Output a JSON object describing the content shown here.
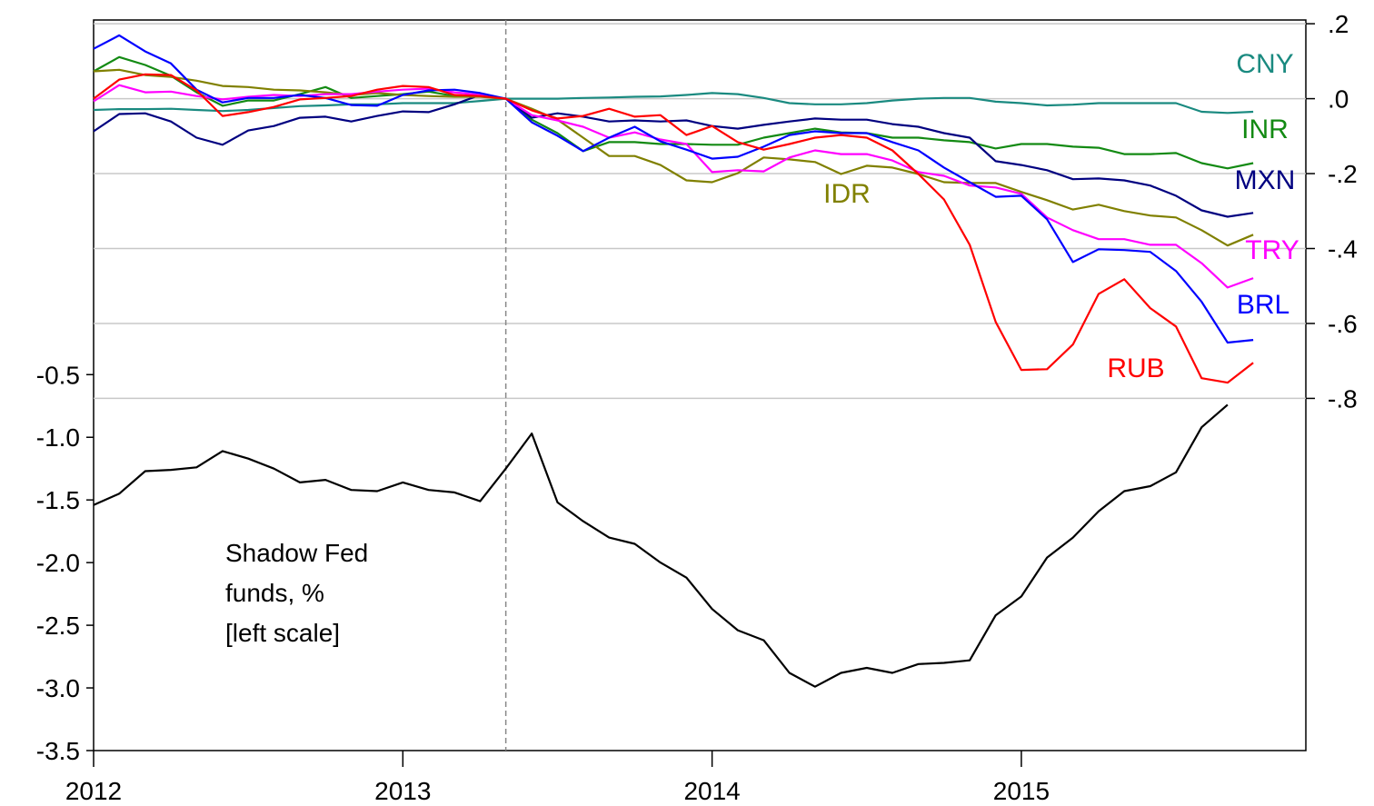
{
  "chart_data": {
    "type": "line",
    "x": [
      2012,
      2012.083,
      2012.167,
      2012.25,
      2012.333,
      2012.417,
      2012.5,
      2012.583,
      2012.667,
      2012.75,
      2012.833,
      2012.917,
      2013,
      2013.083,
      2013.167,
      2013.25,
      2013.333,
      2013.417,
      2013.5,
      2013.583,
      2013.667,
      2013.75,
      2013.833,
      2013.917,
      2014,
      2014.083,
      2014.167,
      2014.25,
      2014.333,
      2014.417,
      2014.5,
      2014.583,
      2014.667,
      2014.75,
      2014.833,
      2014.917,
      2015,
      2015.083,
      2015.167,
      2015.25,
      2015.333,
      2015.417,
      2015.5,
      2015.583,
      2015.667,
      2015.75
    ],
    "xlim": [
      2012,
      2015.92
    ],
    "xticks": [
      2012,
      2013,
      2014,
      2015
    ],
    "ylim": [
      -3.5,
      2.33
    ],
    "yticks": [
      -3.5,
      {
        "value": -3,
        "label": "-3.0"
      },
      -2.5,
      {
        "value": -2,
        "label": "-2.0"
      },
      -1.5,
      {
        "value": -1,
        "label": "-1.0"
      },
      -0.5
    ],
    "y2lim": [
      -1.74,
      0.21
    ],
    "y2ticks": [
      {
        "value": 0.2,
        "label": ".2"
      },
      {
        "value": 0,
        "label": ".0"
      },
      {
        "value": -0.2,
        "label": "-.2"
      },
      {
        "value": -0.4,
        "label": "-.4"
      },
      {
        "value": -0.6,
        "label": "-.6"
      },
      {
        "value": -0.8,
        "label": "-.8"
      }
    ],
    "grid": true,
    "vlines": [
      2013.333
    ],
    "series": [
      {
        "name": [
          "Shadow Fed",
          "funds, %",
          "[left scale]"
        ],
        "color": "#000000",
        "axis": "y",
        "values": [
          -1.54,
          -1.45,
          -1.27,
          -1.26,
          -1.24,
          -1.11,
          -1.17,
          -1.25,
          -1.36,
          -1.34,
          -1.42,
          -1.43,
          -1.36,
          -1.42,
          -1.44,
          -1.51,
          -1.25,
          -0.97,
          -1.52,
          -1.67,
          -1.8,
          -1.85,
          -2.0,
          -2.12,
          -2.37,
          -2.54,
          -2.62,
          -2.88,
          -2.99,
          -2.88,
          -2.84,
          -2.88,
          -2.81,
          -2.8,
          -2.78,
          -2.42,
          -2.27,
          -1.96,
          -1.8,
          -1.59,
          -1.43,
          -1.39,
          -1.28,
          -0.92,
          -0.74,
          null
        ]
      },
      {
        "name": "CNY",
        "color": "#1a8a80",
        "axis": "y2",
        "values": [
          -0.03,
          -0.028,
          -0.028,
          -0.027,
          -0.03,
          -0.033,
          -0.03,
          -0.025,
          -0.02,
          -0.018,
          -0.015,
          -0.015,
          -0.012,
          -0.012,
          -0.012,
          -0.006,
          0,
          0,
          0,
          0.002,
          0.003,
          0.005,
          0.006,
          0.01,
          0.015,
          0.012,
          0.002,
          -0.012,
          -0.015,
          -0.015,
          -0.012,
          -0.005,
          0,
          0.002,
          0.002,
          -0.008,
          -0.012,
          -0.018,
          -0.016,
          -0.012,
          -0.012,
          -0.012,
          -0.012,
          -0.035,
          -0.038,
          -0.035
        ]
      },
      {
        "name": "INR",
        "color": "#138a13",
        "axis": "y2",
        "values": [
          0.073,
          0.111,
          0.09,
          0.061,
          0.017,
          -0.019,
          -0.005,
          -0.005,
          0.012,
          0.031,
          0.002,
          0.007,
          0.012,
          0.019,
          0.007,
          0.007,
          0,
          -0.056,
          -0.092,
          -0.14,
          -0.116,
          -0.116,
          -0.121,
          -0.121,
          -0.123,
          -0.123,
          -0.104,
          -0.092,
          -0.08,
          -0.09,
          -0.092,
          -0.104,
          -0.104,
          -0.111,
          -0.116,
          -0.133,
          -0.121,
          -0.121,
          -0.128,
          -0.131,
          -0.148,
          -0.148,
          -0.145,
          -0.172,
          -0.186,
          -0.172
        ]
      },
      {
        "name": "MXN",
        "color": "#000080",
        "axis": "y2",
        "values": [
          -0.087,
          -0.041,
          -0.039,
          -0.061,
          -0.104,
          -0.123,
          -0.085,
          -0.073,
          -0.051,
          -0.048,
          -0.061,
          -0.046,
          -0.034,
          -0.036,
          -0.015,
          0.01,
          0,
          -0.051,
          -0.039,
          -0.048,
          -0.061,
          -0.058,
          -0.061,
          -0.058,
          -0.073,
          -0.08,
          -0.07,
          -0.061,
          -0.053,
          -0.056,
          -0.056,
          -0.068,
          -0.075,
          -0.092,
          -0.104,
          -0.167,
          -0.177,
          -0.191,
          -0.215,
          -0.213,
          -0.218,
          -0.232,
          -0.259,
          -0.298,
          -0.315,
          -0.305
        ]
      },
      {
        "name": "IDR",
        "color": "#808000",
        "axis": "y2",
        "values": [
          0.073,
          0.077,
          0.063,
          0.058,
          0.048,
          0.034,
          0.031,
          0.024,
          0.022,
          0.017,
          0.01,
          0.015,
          0.01,
          0.007,
          0.005,
          0.005,
          0,
          -0.027,
          -0.056,
          -0.104,
          -0.153,
          -0.153,
          -0.177,
          -0.218,
          -0.223,
          -0.199,
          -0.157,
          -0.162,
          -0.169,
          -0.201,
          -0.179,
          -0.184,
          -0.201,
          -0.223,
          -0.225,
          -0.225,
          -0.249,
          -0.271,
          -0.296,
          -0.283,
          -0.3,
          -0.312,
          -0.317,
          -0.351,
          -0.392,
          -0.363
        ]
      },
      {
        "name": "TRY",
        "color": "#ff00ff",
        "axis": "y2",
        "values": [
          -0.007,
          0.036,
          0.017,
          0.019,
          0.007,
          -0.002,
          0.005,
          0.01,
          0.007,
          0.012,
          0.012,
          0.019,
          0.024,
          0.027,
          0.017,
          0.01,
          0,
          -0.044,
          -0.058,
          -0.075,
          -0.104,
          -0.09,
          -0.109,
          -0.121,
          -0.196,
          -0.191,
          -0.194,
          -0.157,
          -0.138,
          -0.148,
          -0.148,
          -0.165,
          -0.196,
          -0.206,
          -0.232,
          -0.237,
          -0.254,
          -0.317,
          -0.351,
          -0.375,
          -0.375,
          -0.39,
          -0.39,
          -0.439,
          -0.504,
          -0.479
        ]
      },
      {
        "name": "BRL",
        "color": "#0000ff",
        "axis": "y2",
        "values": [
          0.133,
          0.169,
          0.126,
          0.094,
          0.024,
          -0.01,
          0.002,
          0.002,
          0.01,
          0.002,
          -0.017,
          -0.019,
          0.01,
          0.022,
          0.024,
          0.015,
          0,
          -0.063,
          -0.099,
          -0.14,
          -0.104,
          -0.075,
          -0.114,
          -0.136,
          -0.16,
          -0.155,
          -0.128,
          -0.097,
          -0.087,
          -0.092,
          -0.092,
          -0.116,
          -0.138,
          -0.184,
          -0.223,
          -0.262,
          -0.259,
          -0.322,
          -0.436,
          -0.402,
          -0.404,
          -0.409,
          -0.46,
          -0.542,
          -0.651,
          -0.644
        ]
      },
      {
        "name": "RUB",
        "color": "#ff0000",
        "axis": "y2",
        "values": [
          0,
          0.051,
          0.065,
          0.063,
          0.022,
          -0.046,
          -0.036,
          -0.022,
          -0.002,
          0.002,
          0.007,
          0.024,
          0.034,
          0.031,
          0.01,
          0.007,
          0,
          -0.031,
          -0.053,
          -0.046,
          -0.027,
          -0.048,
          -0.044,
          -0.097,
          -0.073,
          -0.116,
          -0.136,
          -0.121,
          -0.104,
          -0.097,
          -0.104,
          -0.138,
          -0.201,
          -0.269,
          -0.39,
          -0.596,
          -0.724,
          -0.722,
          -0.656,
          -0.521,
          -0.482,
          -0.559,
          -0.608,
          -0.746,
          -0.758,
          -0.705
        ]
      }
    ]
  }
}
